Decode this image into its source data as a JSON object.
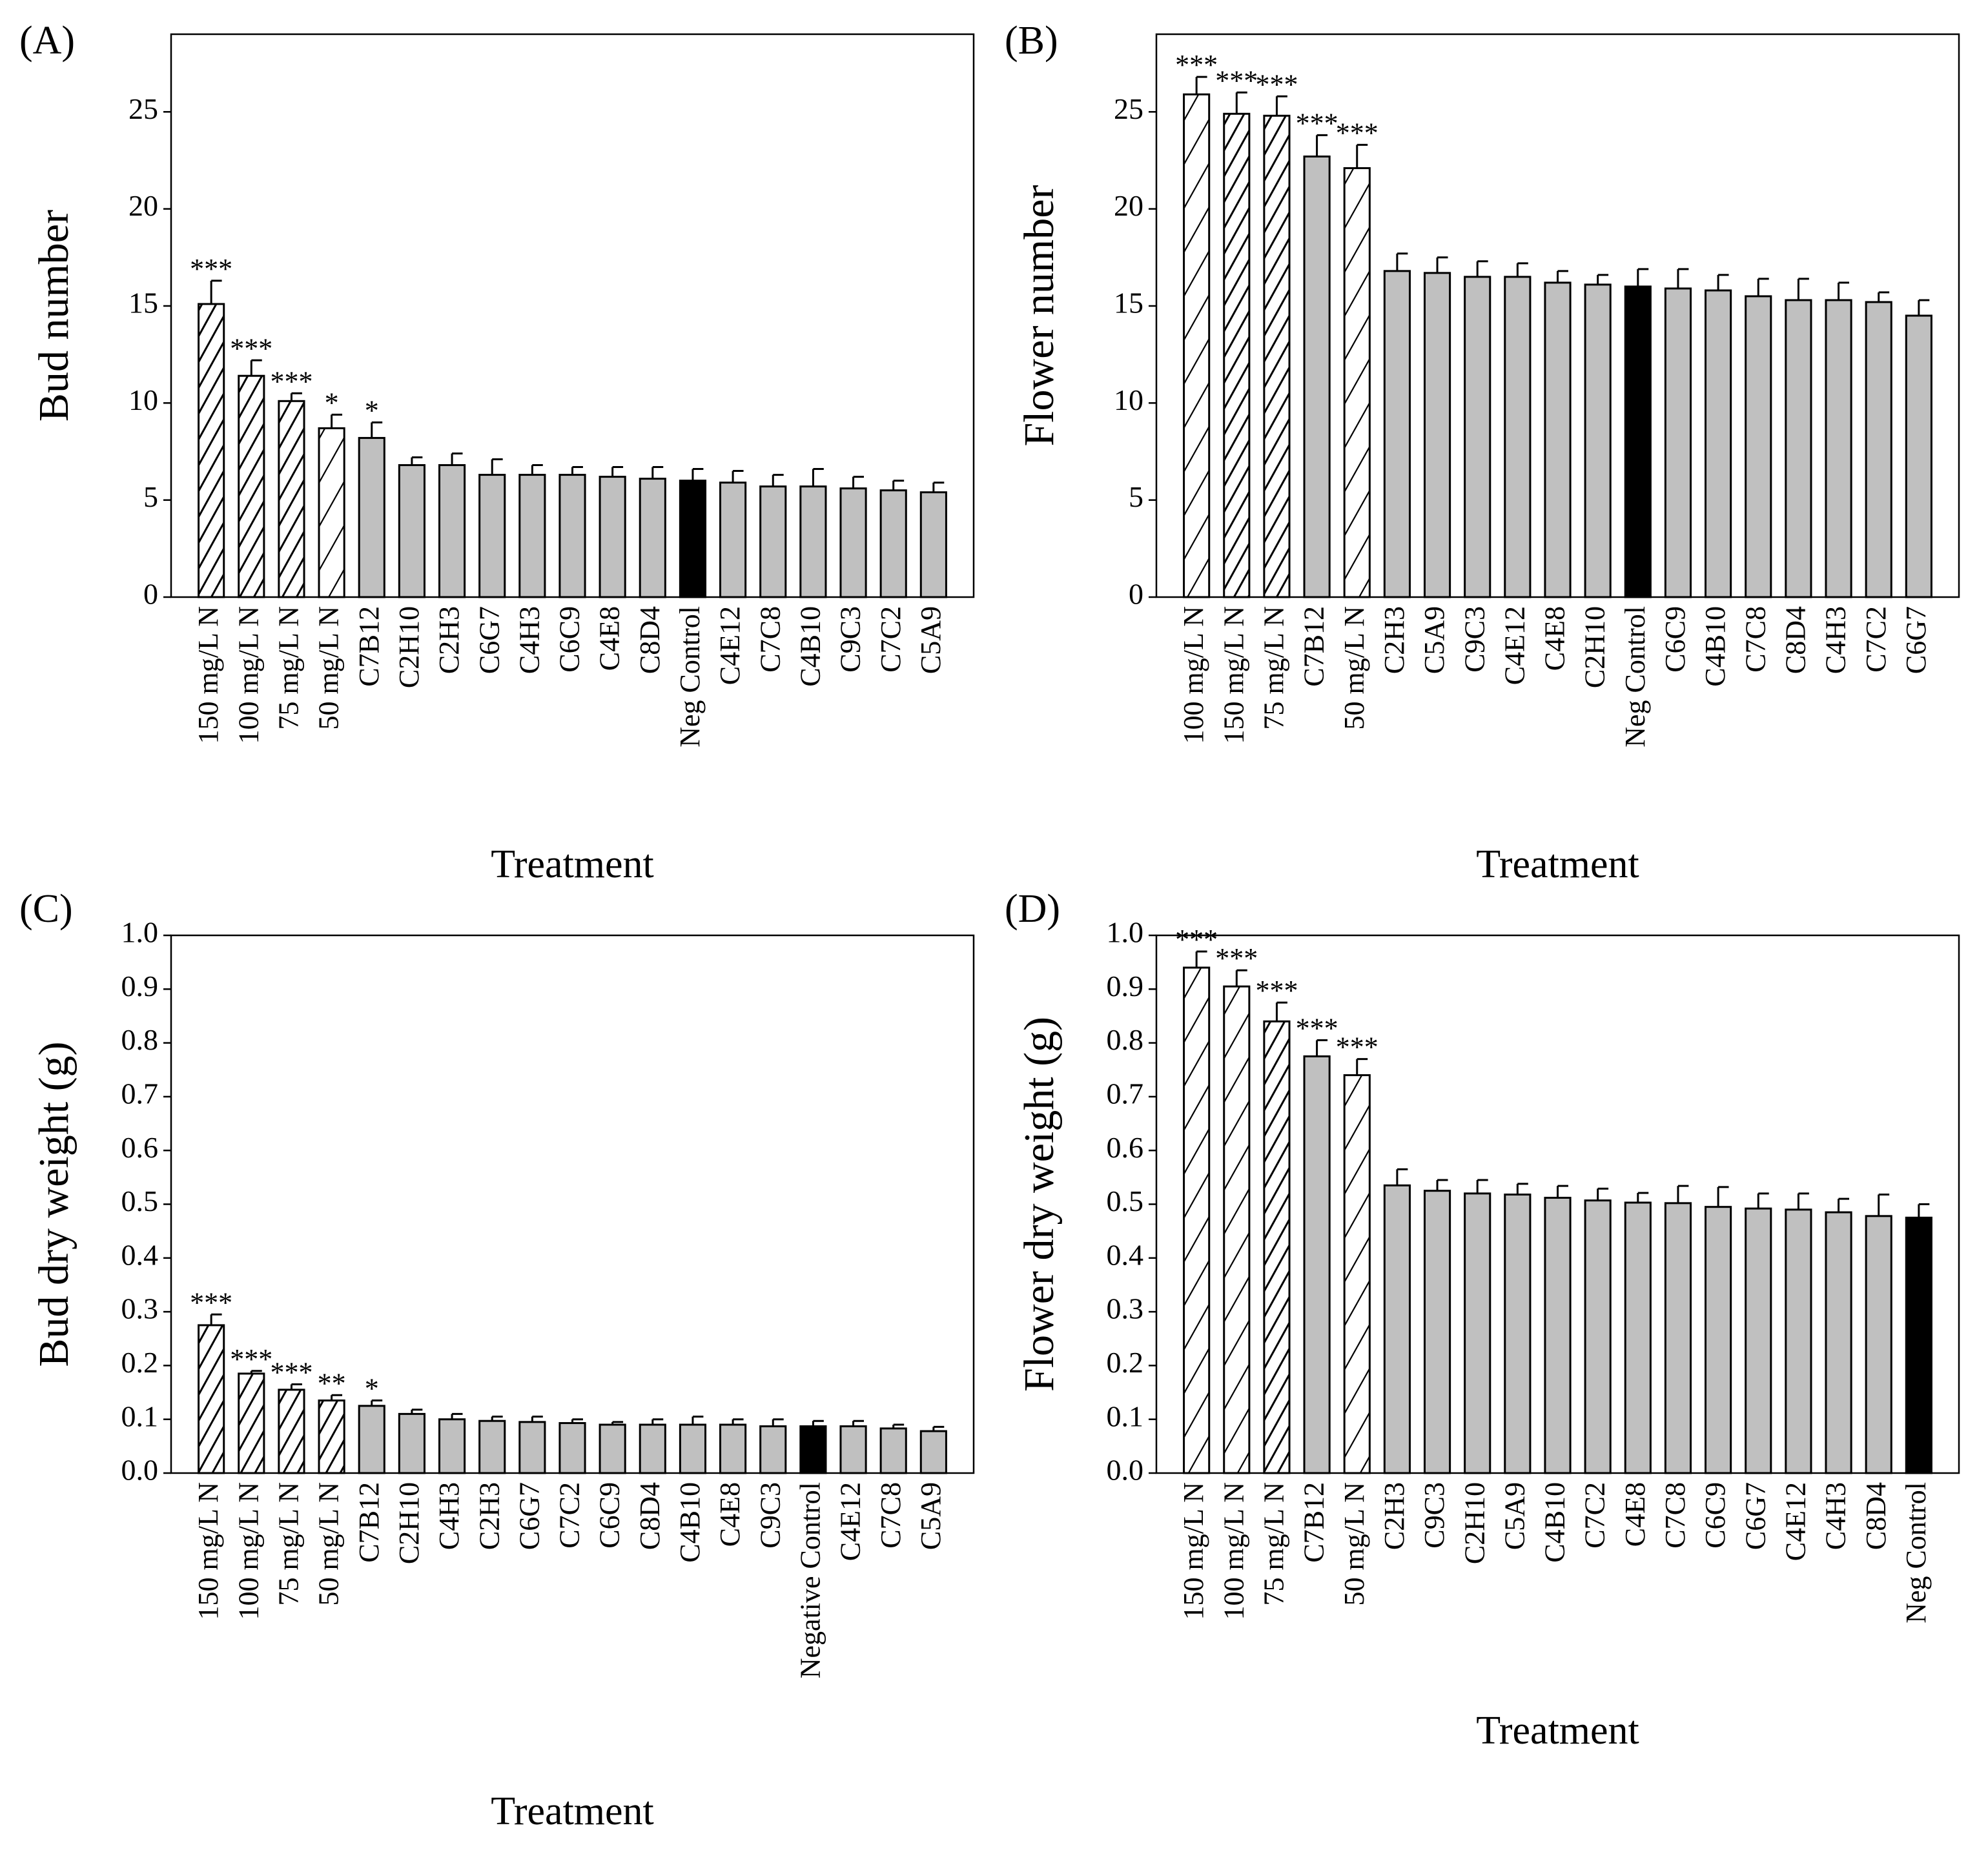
{
  "chart_data": [
    {
      "type": "bar",
      "panel_label": "(A)",
      "y_label": "Bud number",
      "x_label": "Treatment",
      "categories": [
        "150 mg/L N",
        "100 mg/L N",
        "75 mg/L N",
        "50 mg/L N",
        "C7B12",
        "C2H10",
        "C2H3",
        "C6G7",
        "C4H3",
        "C6C9",
        "C4E8",
        "C8D4",
        "Neg Control",
        "C4E12",
        "C7C8",
        "C4B10",
        "C9C3",
        "C7C2",
        "C5A9"
      ],
      "values": [
        15.1,
        11.4,
        10.1,
        8.7,
        8.2,
        6.8,
        6.8,
        6.3,
        6.3,
        6.3,
        6.2,
        6.1,
        6.0,
        5.9,
        5.7,
        5.7,
        5.6,
        5.5,
        5.4
      ],
      "errors": [
        1.2,
        0.8,
        0.4,
        0.7,
        0.8,
        0.4,
        0.6,
        0.8,
        0.5,
        0.4,
        0.5,
        0.6,
        0.6,
        0.6,
        0.6,
        0.9,
        0.6,
        0.5,
        0.5
      ],
      "significance": [
        "***",
        "***",
        "***",
        "*",
        "*",
        null,
        null,
        null,
        null,
        null,
        null,
        null,
        null,
        null,
        null,
        null,
        null,
        null,
        null
      ],
      "bar_styles": [
        "hatch",
        "hatch",
        "hatch",
        "hatch-sparse",
        "#c0c0c0",
        "#c0c0c0",
        "#c0c0c0",
        "#c0c0c0",
        "#c0c0c0",
        "#c0c0c0",
        "#c0c0c0",
        "#c0c0c0",
        "#000000",
        "#c0c0c0",
        "#c0c0c0",
        "#c0c0c0",
        "#c0c0c0",
        "#c0c0c0",
        "#c0c0c0"
      ],
      "ylim": [
        0,
        29
      ],
      "yticks": [
        0,
        5,
        10,
        15,
        20,
        25
      ]
    },
    {
      "type": "bar",
      "panel_label": "(B)",
      "y_label": "Flower number",
      "x_label": "Treatment",
      "categories": [
        "100 mg/L N",
        "150 mg/L N",
        "75 mg/L N",
        "C7B12",
        "50 mg/L N",
        "C2H3",
        "C5A9",
        "C9C3",
        "C4E12",
        "C4E8",
        "C2H10",
        "Neg Control",
        "C6C9",
        "C4B10",
        "C7C8",
        "C8D4",
        "C4H3",
        "C7C2",
        "C6G7"
      ],
      "values": [
        25.9,
        24.9,
        24.8,
        22.7,
        22.1,
        16.8,
        16.7,
        16.5,
        16.5,
        16.2,
        16.1,
        16.0,
        15.9,
        15.8,
        15.5,
        15.3,
        15.3,
        15.2,
        14.5
      ],
      "errors": [
        0.9,
        1.1,
        1.0,
        1.1,
        1.2,
        0.9,
        0.8,
        0.8,
        0.7,
        0.6,
        0.5,
        0.9,
        1.0,
        0.8,
        0.9,
        1.1,
        0.9,
        0.5,
        0.8
      ],
      "significance": [
        "***",
        "***",
        "***",
        "***",
        "***",
        null,
        null,
        null,
        null,
        null,
        null,
        null,
        null,
        null,
        null,
        null,
        null,
        null,
        null
      ],
      "bar_styles": [
        "hatch-sparse",
        "hatch",
        "hatch",
        "#c0c0c0",
        "hatch-sparse",
        "#c0c0c0",
        "#c0c0c0",
        "#c0c0c0",
        "#c0c0c0",
        "#c0c0c0",
        "#c0c0c0",
        "#000000",
        "#c0c0c0",
        "#c0c0c0",
        "#c0c0c0",
        "#c0c0c0",
        "#c0c0c0",
        "#c0c0c0",
        "#c0c0c0"
      ],
      "ylim": [
        0,
        29
      ],
      "yticks": [
        0,
        5,
        10,
        15,
        20,
        25
      ]
    },
    {
      "type": "bar",
      "panel_label": "(C)",
      "y_label": "Bud dry weight (g)",
      "x_label": "Treatment",
      "categories": [
        "150 mg/L N",
        "100 mg/L N",
        "75 mg/L N",
        "50 mg/L N",
        "C7B12",
        "C2H10",
        "C4H3",
        "C2H3",
        "C6G7",
        "C7C2",
        "C6C9",
        "C8D4",
        "C4B10",
        "C4E8",
        "C9C3",
        "Negative Control",
        "C4E12",
        "C7C8",
        "C5A9"
      ],
      "values": [
        0.275,
        0.185,
        0.155,
        0.135,
        0.125,
        0.11,
        0.1,
        0.097,
        0.095,
        0.093,
        0.09,
        0.09,
        0.09,
        0.09,
        0.087,
        0.087,
        0.087,
        0.083,
        0.078
      ],
      "errors": [
        0.02,
        0.005,
        0.01,
        0.01,
        0.01,
        0.008,
        0.01,
        0.008,
        0.01,
        0.007,
        0.005,
        0.01,
        0.015,
        0.01,
        0.013,
        0.01,
        0.01,
        0.007,
        0.008
      ],
      "significance": [
        "***",
        "***",
        "***",
        "**",
        "*",
        null,
        null,
        null,
        null,
        null,
        null,
        null,
        null,
        null,
        null,
        null,
        null,
        null,
        null
      ],
      "bar_styles": [
        "hatch",
        "hatch",
        "hatch",
        "hatch",
        "#c0c0c0",
        "#c0c0c0",
        "#c0c0c0",
        "#c0c0c0",
        "#c0c0c0",
        "#c0c0c0",
        "#c0c0c0",
        "#c0c0c0",
        "#c0c0c0",
        "#c0c0c0",
        "#c0c0c0",
        "#000000",
        "#c0c0c0",
        "#c0c0c0",
        "#c0c0c0"
      ],
      "ylim": [
        0,
        1
      ],
      "yticks": [
        {
          "value": 0,
          "label": "0.0"
        },
        0.1,
        0.2,
        0.3,
        0.4,
        0.5,
        0.6,
        0.7,
        0.8,
        0.9,
        {
          "value": 1,
          "label": "1.0"
        }
      ]
    },
    {
      "type": "bar",
      "panel_label": "(D)",
      "y_label": "Flower dry weight (g)",
      "x_label": "Treatment",
      "categories": [
        "150 mg/L N",
        "100 mg/L N",
        "75 mg/L N",
        "C7B12",
        "50 mg/L N",
        "C2H3",
        "C9C3",
        "C2H10",
        "C5A9",
        "C4B10",
        "C7C2",
        "C4E8",
        "C7C8",
        "C6C9",
        "C6G7",
        "C4E12",
        "C4H3",
        "C8D4",
        "Neg Control"
      ],
      "values": [
        0.94,
        0.905,
        0.84,
        0.775,
        0.74,
        0.535,
        0.525,
        0.52,
        0.518,
        0.512,
        0.507,
        0.503,
        0.502,
        0.495,
        0.492,
        0.49,
        0.485,
        0.478,
        0.475
      ],
      "errors": [
        0.03,
        0.03,
        0.035,
        0.03,
        0.03,
        0.03,
        0.02,
        0.025,
        0.02,
        0.022,
        0.022,
        0.018,
        0.032,
        0.037,
        0.028,
        0.03,
        0.025,
        0.04,
        0.025
      ],
      "significance": [
        "***",
        "***",
        "***",
        "***",
        "***",
        null,
        null,
        null,
        null,
        null,
        null,
        null,
        null,
        null,
        null,
        null,
        null,
        null,
        null
      ],
      "bar_styles": [
        "hatch-sparse",
        "hatch-sparse",
        "hatch",
        "#c0c0c0",
        "hatch-sparse",
        "#c0c0c0",
        "#c0c0c0",
        "#c0c0c0",
        "#c0c0c0",
        "#c0c0c0",
        "#c0c0c0",
        "#c0c0c0",
        "#c0c0c0",
        "#c0c0c0",
        "#c0c0c0",
        "#c0c0c0",
        "#c0c0c0",
        "#c0c0c0",
        "#000000"
      ],
      "ylim": [
        0,
        1
      ],
      "yticks": [
        {
          "value": 0,
          "label": "0.0"
        },
        0.1,
        0.2,
        0.3,
        0.4,
        0.5,
        0.6,
        0.7,
        0.8,
        0.9,
        {
          "value": 1,
          "label": "1.0"
        }
      ]
    }
  ]
}
